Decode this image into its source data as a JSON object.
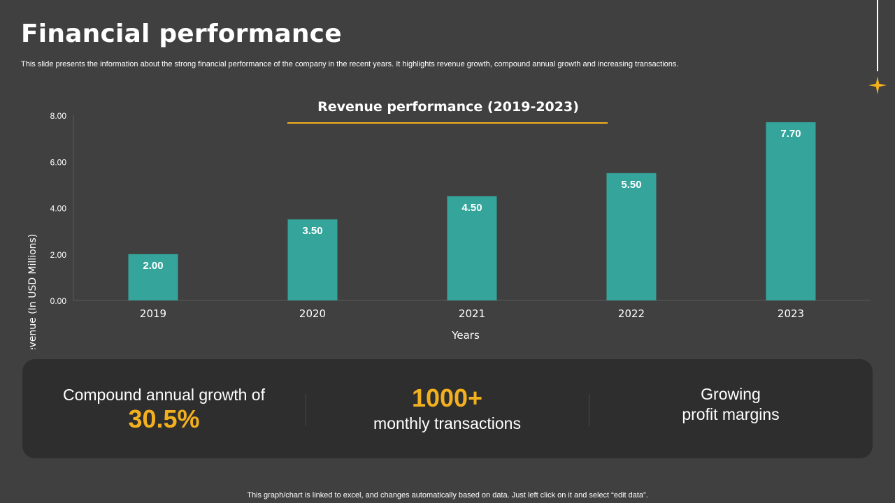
{
  "slide": {
    "title": "Financial performance",
    "subtitle": "This slide presents the information about the strong financial performance of the company in the recent years. It highlights revenue growth, compound annual growth and increasing transactions.",
    "footer": "This graph/chart is linked to excel, and changes automatically based on data. Just left click on it and select “edit data”."
  },
  "colors": {
    "background": "#404040",
    "bar": "#35a59c",
    "accent": "#f2b01e",
    "panel": "#2e2e2e",
    "axis": "#5a5a5a"
  },
  "chart_data": {
    "type": "bar",
    "title": "Revenue performance (2019-2023)",
    "xlabel": "Years",
    "ylabel": "Revenue (In USD Millions)",
    "categories": [
      "2019",
      "2020",
      "2021",
      "2022",
      "2023"
    ],
    "values": [
      2.0,
      3.5,
      4.5,
      5.5,
      7.7
    ],
    "data_labels": [
      "2.00",
      "3.50",
      "4.50",
      "5.50",
      "7.70"
    ],
    "ylim": [
      0,
      8
    ],
    "yticks": [
      "0.00",
      "2.00",
      "4.00",
      "6.00",
      "8.00"
    ],
    "grid": false
  },
  "stats": [
    {
      "label": "Compound annual growth of",
      "value": "30.5%"
    },
    {
      "value": "1000+",
      "label": "monthly transactions"
    },
    {
      "line1": "Growing",
      "line2": "profit margins"
    }
  ],
  "icons": {
    "decoration": "sparkle-star-icon"
  }
}
